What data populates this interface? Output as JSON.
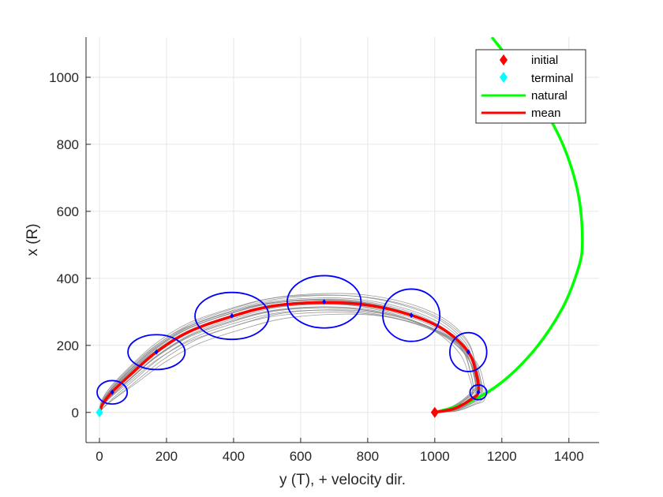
{
  "chart_data": {
    "type": "line",
    "xlabel": "y (T), + velocity dir.",
    "ylabel": "x (R)",
    "xlim": [
      -40,
      1490
    ],
    "ylim": [
      -90,
      1120
    ],
    "xticks": [
      0,
      200,
      400,
      600,
      800,
      1000,
      1200,
      1400
    ],
    "yticks": [
      0,
      200,
      400,
      600,
      800,
      1000
    ],
    "grid": true,
    "legend_position": "top-right",
    "legend": [
      "initial",
      "terminal",
      "natural",
      "mean"
    ],
    "colors": {
      "initial": "#ff0000",
      "terminal": "#00ffff",
      "natural": "#00ff00",
      "mean": "#ff0000",
      "samples": "#8c8c8c",
      "ellipses": "#0000ff",
      "ellipse_centers": "#0000ff"
    },
    "initial": {
      "x": 1000,
      "y": 0
    },
    "terminal": {
      "x": 0,
      "y": 0
    },
    "natural": {
      "x": [
        1000,
        1100,
        1200,
        1300,
        1380,
        1425,
        1440,
        1430,
        1390,
        1330,
        1240,
        1170
      ],
      "y": [
        0,
        30,
        90,
        190,
        310,
        420,
        500,
        640,
        780,
        900,
        1030,
        1120
      ]
    },
    "mean": {
      "x": [
        1000,
        1060,
        1110,
        1130,
        1125,
        1100,
        1030,
        930,
        800,
        670,
        520,
        400,
        270,
        170,
        90,
        35,
        10,
        0
      ],
      "y": [
        0,
        12,
        40,
        60,
        110,
        180,
        245,
        290,
        320,
        328,
        318,
        288,
        242,
        180,
        110,
        58,
        25,
        0
      ]
    },
    "ellipses": [
      {
        "cx": 1130,
        "cy": 60,
        "rx": 25,
        "ry": 22
      },
      {
        "cx": 1100,
        "cy": 180,
        "rx": 55,
        "ry": 58
      },
      {
        "cx": 930,
        "cy": 290,
        "rx": 85,
        "ry": 78
      },
      {
        "cx": 670,
        "cy": 330,
        "rx": 110,
        "ry": 78
      },
      {
        "cx": 395,
        "cy": 288,
        "rx": 110,
        "ry": 70
      },
      {
        "cx": 170,
        "cy": 180,
        "rx": 85,
        "ry": 52
      },
      {
        "cx": 38,
        "cy": 60,
        "rx": 45,
        "ry": 35
      }
    ],
    "samples": {
      "count": 22,
      "spread_y": 38,
      "spread_x": 30
    }
  }
}
